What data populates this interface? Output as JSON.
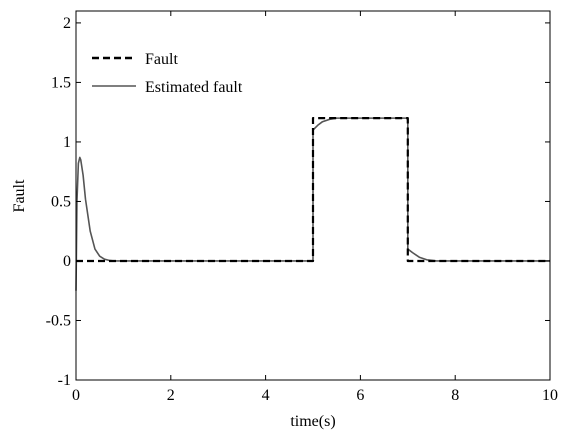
{
  "chart_data": {
    "type": "line",
    "title": "",
    "xlabel": "time(s)",
    "ylabel": "Fault",
    "xlim": [
      0,
      10
    ],
    "ylim": [
      -1,
      2.1
    ],
    "xticks": [
      0,
      2,
      4,
      6,
      8,
      10
    ],
    "xtick_labels": [
      "0",
      "2",
      "4",
      "6",
      "8",
      "10"
    ],
    "yticks": [
      -1,
      -0.5,
      0,
      0.5,
      1,
      1.5,
      2
    ],
    "ytick_labels": [
      "-1",
      "-0.5",
      "0",
      "0.5",
      "1",
      "1.5",
      "2"
    ],
    "grid": false,
    "legend_position": "top-left",
    "series": [
      {
        "name": "Fault",
        "style": "dashed",
        "color": "#000000",
        "x": [
          0,
          5,
          5,
          7,
          7,
          10
        ],
        "y": [
          0,
          0,
          1.2,
          1.2,
          0,
          0
        ]
      },
      {
        "name": "Estimated fault",
        "style": "solid",
        "color": "#555555",
        "x": [
          0,
          0.02,
          0.05,
          0.08,
          0.1,
          0.15,
          0.2,
          0.3,
          0.4,
          0.5,
          0.6,
          0.7,
          0.8,
          1.0,
          5.0,
          5.0,
          5.1,
          5.2,
          5.35,
          5.5,
          5.8,
          7.0,
          7.0,
          7.1,
          7.25,
          7.4,
          7.6,
          10.0
        ],
        "y": [
          -0.25,
          0.5,
          0.82,
          0.87,
          0.85,
          0.72,
          0.52,
          0.25,
          0.1,
          0.04,
          0.015,
          0.005,
          0.0,
          0.0,
          0.0,
          1.1,
          1.14,
          1.17,
          1.19,
          1.2,
          1.2,
          1.2,
          0.1,
          0.07,
          0.03,
          0.01,
          0.0,
          0.0
        ]
      }
    ]
  }
}
